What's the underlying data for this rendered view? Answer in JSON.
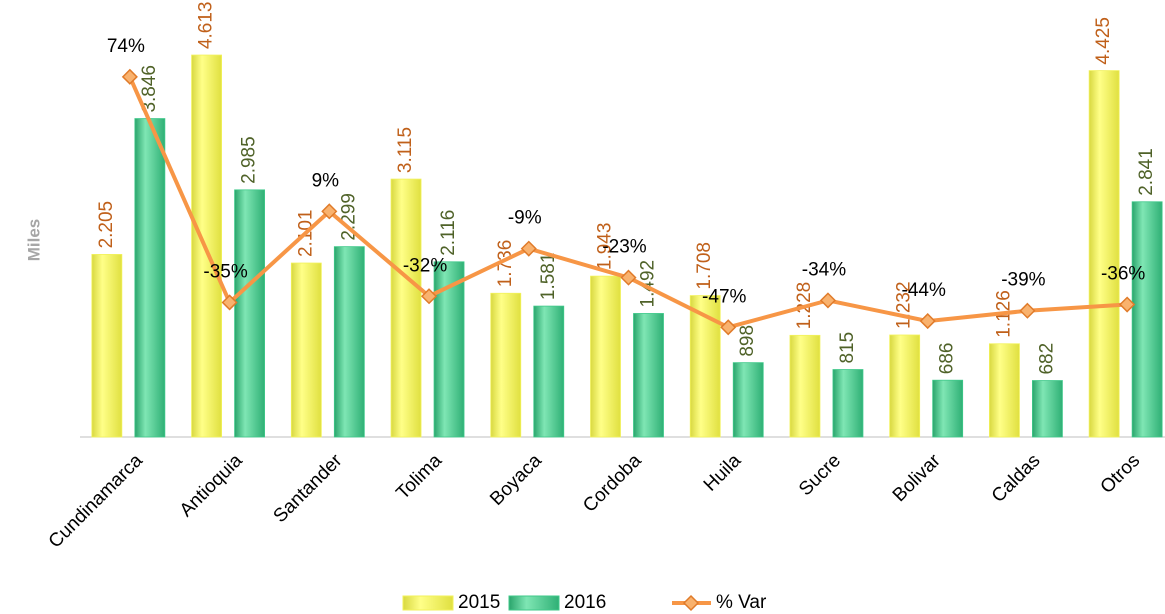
{
  "chart_data": {
    "type": "bar",
    "y_axis_label": "Miles",
    "categories": [
      "Cundinamarca",
      "Antioquia",
      "Santander",
      "Tolima",
      "Boyaca",
      "Cordoba",
      "Huila",
      "Sucre",
      "Bolivar",
      "Caldas",
      "Otros"
    ],
    "series": [
      {
        "name": "2015",
        "type": "bar",
        "color": "#f2f25a",
        "label_color": "#c0601a",
        "values": [
          2205,
          4613,
          2101,
          3115,
          1736,
          1943,
          1708,
          1228,
          1232,
          1126,
          4425
        ],
        "value_labels": [
          "2.205",
          "4.613",
          "2.101",
          "3.115",
          "1.736",
          "1.943",
          "1.708",
          "1.228",
          "1.232",
          "1.126",
          "4.425"
        ]
      },
      {
        "name": "2016",
        "type": "bar",
        "color": "#3fc98a",
        "label_color": "#4f6228",
        "values": [
          3846,
          2985,
          2299,
          2116,
          1581,
          1492,
          898,
          815,
          686,
          682,
          2841
        ],
        "value_labels": [
          "3.846",
          "2.985",
          "2.299",
          "2.116",
          "1.581",
          "1.492",
          "898",
          "815",
          "686",
          "682",
          "2.841"
        ]
      },
      {
        "name": "% Var",
        "type": "line",
        "axis": "y2",
        "color": "#f79646",
        "label_color": "#000000",
        "values": [
          74,
          -35,
          9,
          -32,
          -9,
          -23,
          -47,
          -34,
          -44,
          -39,
          -36
        ],
        "value_labels": [
          "74%",
          "-35%",
          "9%",
          "-32%",
          "-9%",
          "-23%",
          "-47%",
          "-34%",
          "-44%",
          "-39%",
          "-36%"
        ]
      }
    ],
    "ylim": [
      0,
      5000
    ],
    "y2lim": [
      -100,
      100
    ],
    "grid": false,
    "legend": "bottom"
  }
}
